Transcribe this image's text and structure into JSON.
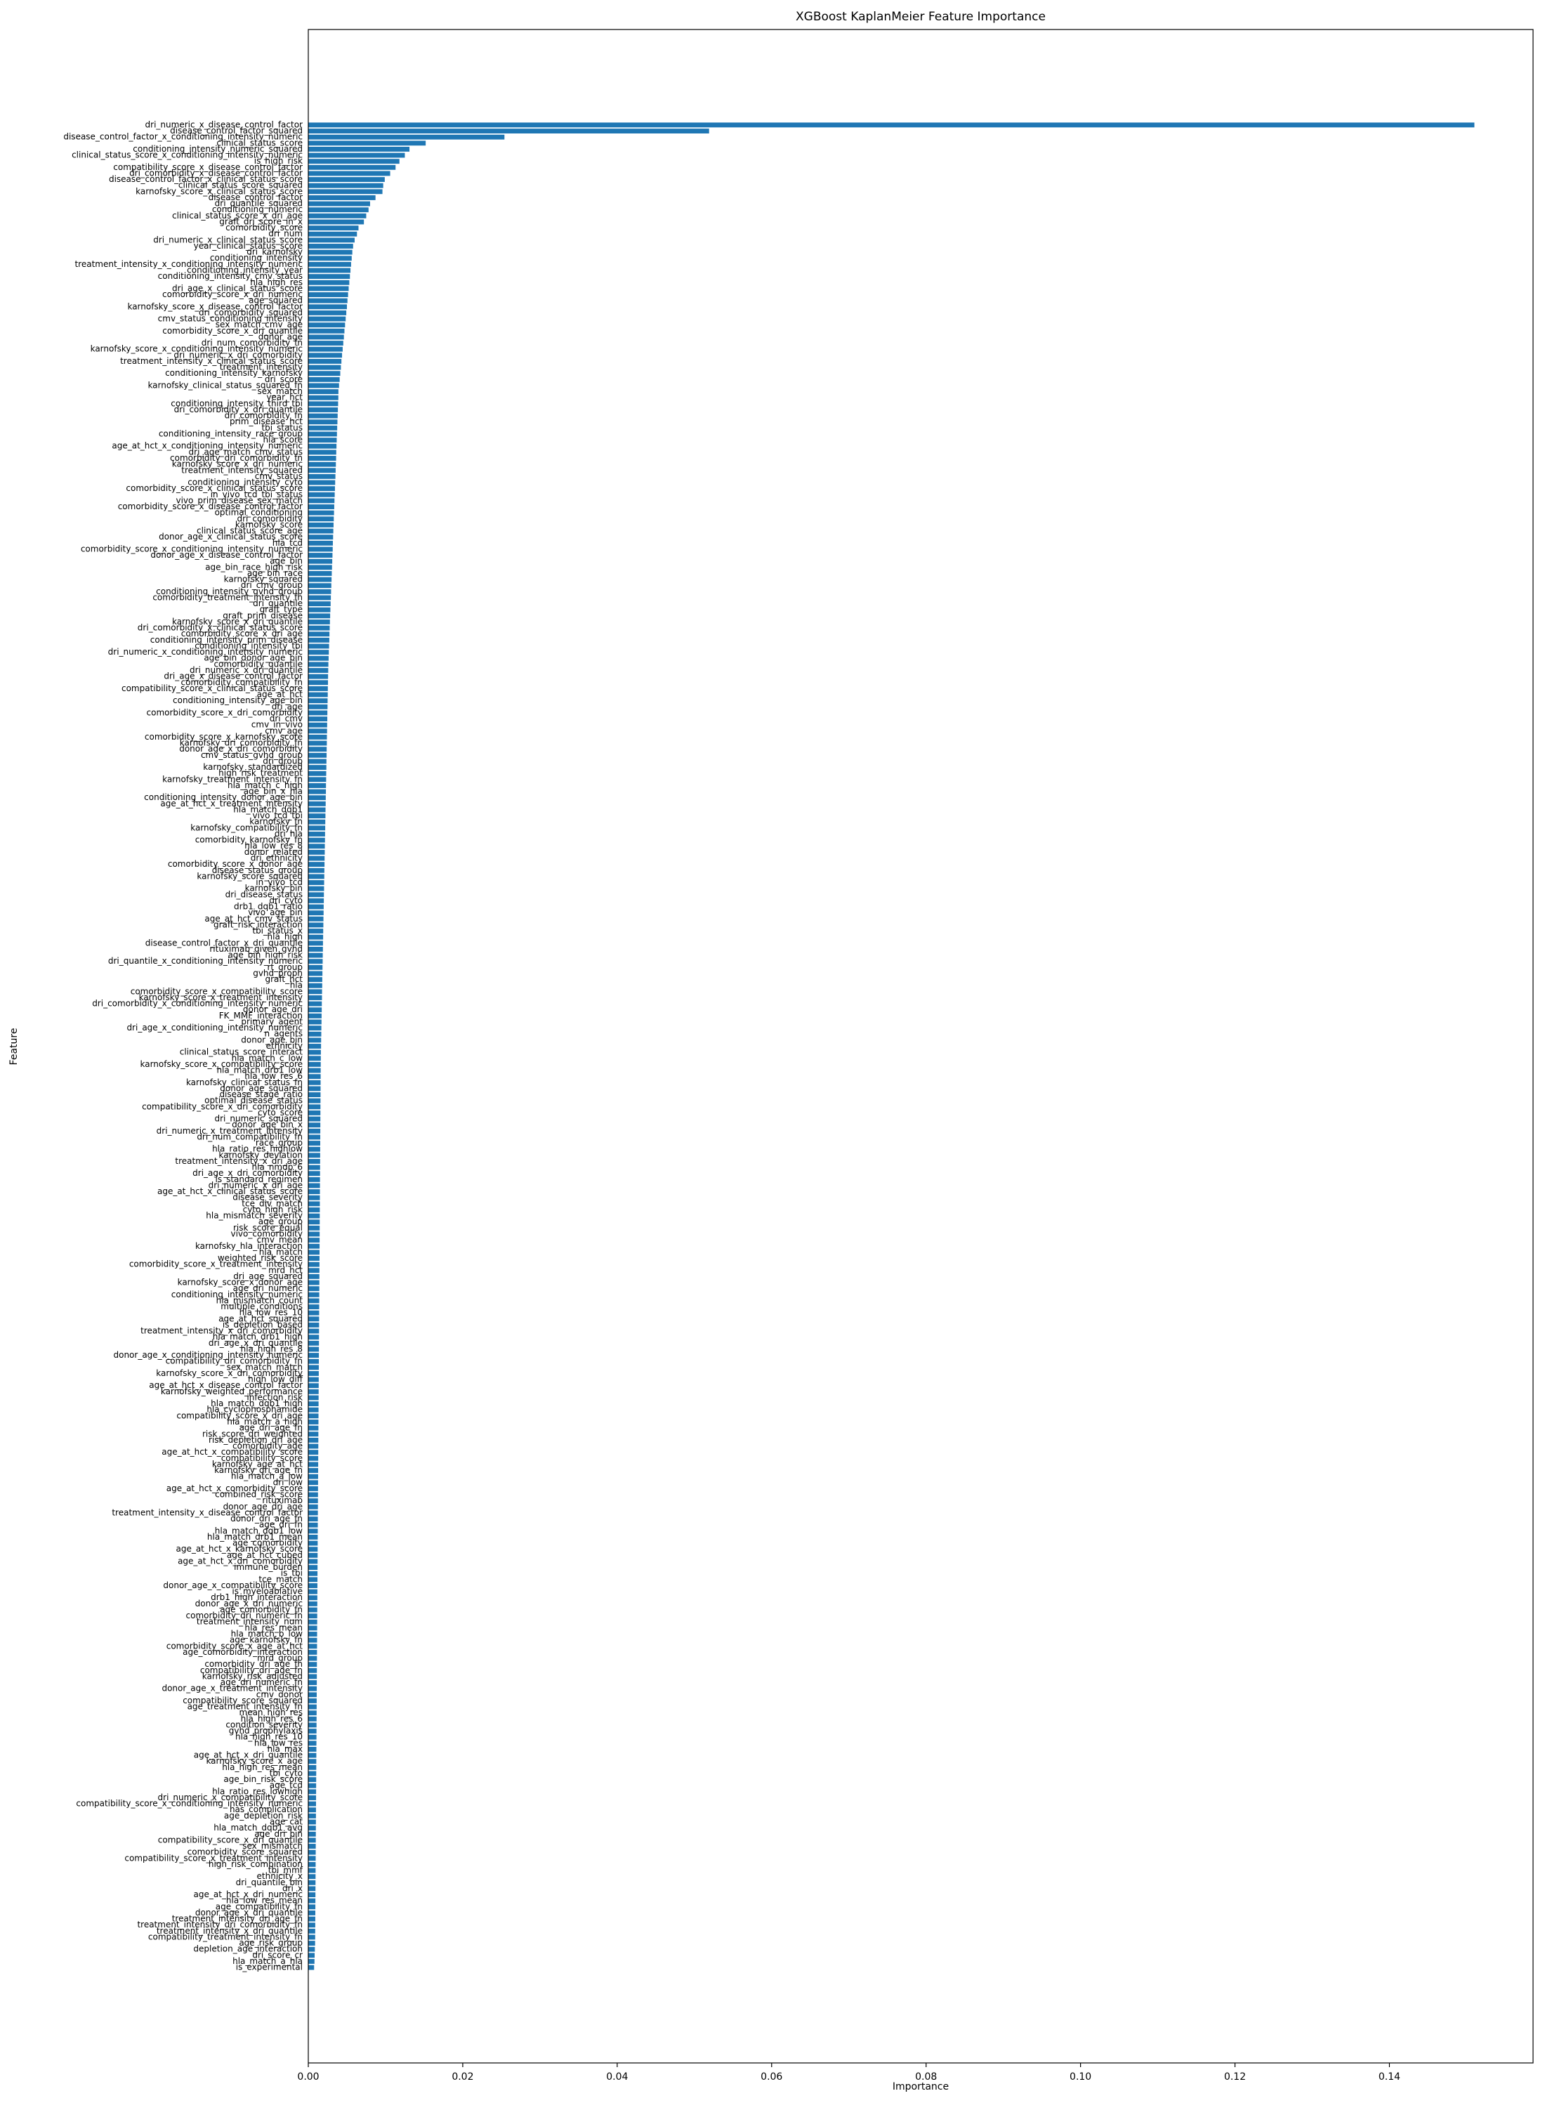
{
  "chart_data": {
    "type": "barh",
    "title": "XGBoost KaplanMeier Feature Importance",
    "x_label": "Importance",
    "y_label": "Feature",
    "color": "#1f77b4",
    "xlim": [
      0,
      0.1586
    ],
    "xticks": [
      {
        "value": 0,
        "label": "0.00"
      },
      {
        "value": 0.02,
        "label": "0.02"
      },
      {
        "value": 0.04,
        "label": "0.04"
      },
      {
        "value": 0.06,
        "label": "0.06"
      },
      {
        "value": 0.08,
        "label": "0.08"
      },
      {
        "value": 0.1,
        "label": "0.10"
      },
      {
        "value": 0.12,
        "label": "0.12"
      },
      {
        "value": 0.14,
        "label": "0.14"
      }
    ],
    "categories": [
      "dri_numeric_x_disease_control_factor",
      "disease_control_factor_squared",
      "disease_control_factor_x_conditioning_intensity_numeric",
      "clinical_status_score",
      "conditioning_intensity_numeric_squared",
      "clinical_status_score_x_conditioning_intensity_numeric",
      "is_high_risk",
      "compatibility_score_x_disease_control_factor",
      "dri_comorbidity_x_disease_control_factor",
      "disease_control_factor_x_clinical_status_score",
      "clinical_status_score_squared",
      "karnofsky_score_x_clinical_status_score",
      "disease_control_factor",
      "dri_quantile_squared",
      "conditioning_numeric",
      "clinical_status_score_x_dri_age",
      "graft_dri_score_in_x",
      "comorbidity_score",
      "dri_num",
      "dri_numeric_x_clinical_status_score",
      "year_clinical_status_score",
      "dri_karnofsky",
      "conditioning_intensity",
      "treatment_intensity_x_conditioning_intensity_numeric",
      "conditioning_intensity_year",
      "conditioning_intensity_cmv_status",
      "hla_high_res",
      "dri_age_x_clinical_status_score",
      "comorbidity_score_x_dri_numeric",
      "age_squared",
      "karnofsky_score_x_disease_control_factor",
      "dri_comorbidity_squared",
      "cmv_status_conditioning_intensity",
      "sex_match_cmv_age",
      "comorbidity_score_x_dri_quantile",
      "donor_age",
      "dri_num_comorbidity_fn",
      "karnofsky_score_x_conditioning_intensity_numeric",
      "dri_numeric_x_dri_comorbidity",
      "treatment_intensity_x_clinical_status_score",
      "treatment_intensity",
      "conditioning_intensity_karnofsky",
      "dri_score",
      "karnofsky_clinical_status_squared_fn",
      "sex_match",
      "year_hct",
      "conditioning_intensity_third_tbi",
      "dri_comorbidity_x_dri_quantile",
      "dri_comorbidity_fn",
      "prim_disease_hct",
      "tbi_status",
      "conditioning_intensity_race_group",
      "hla_score",
      "age_at_hct_x_conditioning_intensity_numeric",
      "dri_age_match_cmv_status",
      "comorbidity_dri_comorbidity_fn",
      "karnofsky_score_x_dri_numeric",
      "treatment_intensity_squared",
      "cmv_status",
      "conditioning_intensity_cyto",
      "comorbidity_score_x_clinical_status_score",
      "in_vivo_tcd_tbi_status",
      "vivo_prim_disease_sex_match",
      "comorbidity_score_x_disease_control_factor",
      "optimal_conditioning",
      "dri_comorbidity",
      "karnofsky_score",
      "clinical_status_score_age",
      "donor_age_x_clinical_status_score",
      "hla_tcd",
      "comorbidity_score_x_conditioning_intensity_numeric",
      "donor_age_x_disease_control_factor",
      "age_bin",
      "age_bin_race_high_risk",
      "age_bin_race",
      "karnofsky_squared",
      "dri_cmv_group",
      "conditioning_intensity_gvhd_group",
      "comorbidity_treatment_intensity_fn",
      "dri_quantile",
      "graft_type",
      "graft_prim_disease",
      "karnofsky_score_x_dri_quantile",
      "dri_comorbidity_x_clinical_status_score",
      "comorbidity_score_x_dri_age",
      "conditioning_intensity_prim_disease",
      "conditioning_intensity_tbi",
      "dri_numeric_x_conditioning_intensity_numeric",
      "age_bin_donor_age_bin",
      "comorbidity_quantile",
      "dri_numeric_x_dri_quantile",
      "dri_age_x_disease_control_factor",
      "comorbidity_compatibility_fn",
      "compatibility_score_x_clinical_status_score",
      "age_at_hct",
      "conditioning_intensity_age_bin",
      "dri_age",
      "comorbidity_score_x_dri_comorbidity",
      "dri_cmv",
      "cmv_in_vivo",
      "cmv_age",
      "comorbidity_score_x_karnofsky_score",
      "karnofsky_dri_comorbidity_fn",
      "donor_age_x_dri_comorbidity",
      "cmv_status_gvhd_group",
      "dri_group",
      "karnofsky_standardized",
      "high_risk_treatment",
      "karnofsky_treatment_intensity_fn",
      "hla_match_c_high",
      "age_bin_x_hla",
      "conditioning_intensity_donor_age_bin",
      "age_at_hct_x_treatment_intensity",
      "hla_match_dqb1",
      "vivo_tcd_tbi",
      "karnofsky_fn",
      "karnofsky_compatibility_fn",
      "dri_hla",
      "comorbidity_karnofsky_fn",
      "hla_low_res_8",
      "donor_related",
      "dri_ethnicity",
      "comorbidity_score_x_donor_age",
      "disease_status_group",
      "karnofsky_score_squared",
      "in_vivo_tcd",
      "karnofsky_bin",
      "dri_disease_status",
      "dri_cyto",
      "drb1_dqb1_ratio",
      "vivo_age_bin",
      "age_at_hct_cmv_status",
      "graft_risk_interaction",
      "tbi_status_x",
      "hla_high",
      "disease_control_factor_x_dri_quantile",
      "rituximab_given_gvhd",
      "age_bin_high_risk",
      "dri_quantile_x_conditioning_intensity_numeric",
      "rt_group",
      "gvhd_proph",
      "graft_hct",
      "hla",
      "comorbidity_score_x_compatibility_score",
      "karnofsky_score_x_treatment_intensity",
      "dri_comorbidity_x_conditioning_intensity_numeric",
      "donor_age_dri",
      "FK_MMF_interaction",
      "primary_agent",
      "dri_age_x_conditioning_intensity_numeric",
      "n_agents",
      "donor_age_bin",
      "ethnicity",
      "clinical_status_score_interact",
      "hla_match_c_low",
      "karnofsky_score_x_compatibility_score",
      "hla_match_drb1_low",
      "hla_low_res_6",
      "karnofsky_clinical_status_fn",
      "donor_age_squared",
      "disease_stage_ratio",
      "optimal_disease_status",
      "compatibility_score_x_dri_comorbidity",
      "cyto_score",
      "dri_numeric_squared",
      "donor_age_bin_x",
      "dri_numeric_x_treatment_intensity",
      "dri_num_compatibility_fn",
      "race_group",
      "hla_ratio_res_highlow",
      "karnofsky_deviation",
      "treatment_intensity_x_dri_age",
      "hla_nmdp_6",
      "dri_age_x_dri_comorbidity",
      "is_standard_regimen",
      "dri_numeric_x_dri_age",
      "age_at_hct_x_clinical_status_score",
      "disease_severity",
      "tce_div_match",
      "cyto_high_risk",
      "hla_mismatch_severity",
      "age_group",
      "risk_score_equal",
      "vivo_comorbidity",
      "cmv_mean",
      "karnofsky_hla_interaction",
      "hla_match",
      "weighted_risk_score",
      "comorbidity_score_x_treatment_intensity",
      "mrd_hct",
      "dri_age_squared",
      "karnofsky_score_x_donor_age",
      "age_dri_numeric",
      "conditioning_intensity_numeric",
      "hla_mismatch_count",
      "multiple_conditions",
      "hla_low_res_10",
      "age_at_hct_squared",
      "is_depletion_based",
      "treatment_intensity_x_dri_comorbidity",
      "hla_match_drb1_high",
      "dri_age_x_dri_quantile",
      "hla_high_res_8",
      "donor_age_x_conditioning_intensity_numeric",
      "compatibility_dri_comorbidity_fn",
      "sex_match_match",
      "karnofsky_score_x_dri_comorbidity",
      "high_low_diff",
      "age_at_hct_x_disease_control_factor",
      "karnofsky_weighted_performance",
      "infection_risk",
      "hla_match_dqb1_high",
      "hla_cyclophosphamide",
      "compatibility_score_x_dri_age",
      "hla_match_a_high",
      "age_dri_age_fn",
      "risk_score_dri_weighted",
      "risk_depletion_dri_age",
      "comorbidity_age",
      "age_at_hct_x_compatibility_score",
      "compatibility_score",
      "karnofsky_age_at_hct",
      "karnofsky_dri_age_fn",
      "hla_match_a_low",
      "dri_low",
      "age_at_hct_x_comorbidity_score",
      "combined_risk_score",
      "rituximab",
      "donor_age_dri_age",
      "treatment_intensity_x_disease_control_factor",
      "donor_dri_age_fn",
      "age_dri_fn",
      "hla_match_dqb1_low",
      "hla_match_drb1_mean",
      "age_comorbidity",
      "age_at_hct_x_karnofsky_score",
      "age_at_hct_cubed",
      "age_at_hct_x_dri_comorbidity",
      "immune_burden",
      "is_tbi",
      "tce_match",
      "donor_age_x_compatibility_score",
      "is_myeloablative",
      "drb1_high_interaction",
      "donor_age_x_dri_numeric",
      "age_comorbidity_fn",
      "comorbidity_dri_numeric_fn",
      "treatment_intensity_num",
      "hla_res_mean",
      "hla_match_b_low",
      "age_karnofsky_fn",
      "comorbidity_score_x_age_at_hct",
      "age_comorbidity_interaction",
      "mrd_group",
      "comorbidity_dri_age_fn",
      "compatibility_dri_age_fn",
      "karnofsky_risk_adjusted",
      "age_dri_numeric_fn",
      "donor_age_x_treatment_intensity",
      "cmv_donor",
      "compatibility_score_squared",
      "age_treatment_intensity_fn",
      "mean_high_res",
      "hla_high_res_6",
      "condition_severity",
      "gvhd_prophylaxis",
      "hla_high_res_10",
      "hla_low_res",
      "hla_max",
      "age_at_hct_x_dri_quantile",
      "karnofsky_score_x_age",
      "hla_high_res_mean",
      "tbi_cyto",
      "age_bin_risk_score",
      "age_tcd",
      "hla_ratio_res_lowhigh",
      "dri_numeric_x_compatibility_score",
      "compatibility_score_x_conditioning_intensity_numeric",
      "has_complication",
      "age_depletion_risk",
      "age_cat",
      "hla_match_dqb1_avg",
      "age_dri_bin",
      "compatibility_score_x_dri_quantile",
      "sex_mismatch",
      "comorbidity_score_squared",
      "compatibility_score_x_treatment_intensity",
      "high_risk_combination",
      "tbi_mmf",
      "ethnicity_x",
      "dri_quantile_bin",
      "dri_x",
      "age_at_hct_x_dri_numeric",
      "hla_low_res_mean",
      "age_compatibility_fn",
      "donor_age_x_dri_quantile",
      "treatment_intensity_dri_age_fn",
      "treatment_intensity_dri_comorbidity_fn",
      "treatment_intensity_x_dri_quantile",
      "compatibility_treatment_intensity_fn",
      "age_risk_group",
      "depletion_age_interaction",
      "dri_score_cr",
      "hla_match_a_hla",
      "is_experimental"
    ],
    "values": [
      0.151,
      0.0519,
      0.0254,
      0.0152,
      0.0131,
      0.0125,
      0.0118,
      0.0113,
      0.0106,
      0.0099,
      0.0097,
      0.0096,
      0.0087,
      0.008,
      0.0078,
      0.0075,
      0.0072,
      0.0065,
      0.0063,
      0.006,
      0.0058,
      0.0057,
      0.00562,
      0.00554,
      0.00546,
      0.00539,
      0.00531,
      0.00523,
      0.00515,
      0.00507,
      0.005,
      0.00492,
      0.00484,
      0.00476,
      0.00468,
      0.00461,
      0.00453,
      0.00445,
      0.00437,
      0.00429,
      0.00422,
      0.00414,
      0.00406,
      0.00398,
      0.0039,
      0.00389,
      0.00386,
      0.00383,
      0.0038,
      0.00377,
      0.00374,
      0.00371,
      0.00368,
      0.00365,
      0.00362,
      0.0036,
      0.00357,
      0.00354,
      0.00351,
      0.00348,
      0.00345,
      0.00342,
      0.00339,
      0.00336,
      0.00333,
      0.0033,
      0.00327,
      0.00324,
      0.00321,
      0.00318,
      0.00316,
      0.00313,
      0.0031,
      0.00307,
      0.00304,
      0.00301,
      0.00298,
      0.00295,
      0.00292,
      0.00289,
      0.00286,
      0.00283,
      0.0028,
      0.00277,
      0.00274,
      0.00272,
      0.00269,
      0.00266,
      0.00263,
      0.0026,
      0.00258,
      0.00256,
      0.00255,
      0.00253,
      0.00252,
      0.0025,
      0.00249,
      0.00247,
      0.00246,
      0.00244,
      0.00243,
      0.00241,
      0.0024,
      0.00238,
      0.00237,
      0.00235,
      0.00234,
      0.00232,
      0.00231,
      0.00229,
      0.00228,
      0.00226,
      0.00225,
      0.00223,
      0.00222,
      0.0022,
      0.00219,
      0.00217,
      0.00216,
      0.00214,
      0.00213,
      0.00211,
      0.0021,
      0.00208,
      0.00207,
      0.00205,
      0.00204,
      0.00202,
      0.00201,
      0.00199,
      0.00198,
      0.00196,
      0.00195,
      0.00193,
      0.00192,
      0.0019,
      0.00189,
      0.00187,
      0.00186,
      0.00184,
      0.00183,
      0.00181,
      0.0018,
      0.00178,
      0.00177,
      0.00175,
      0.00174,
      0.00172,
      0.00171,
      0.00169,
      0.00168,
      0.00166,
      0.00165,
      0.00163,
      0.00162,
      0.00161,
      0.001605,
      0.0016,
      0.001595,
      0.00159,
      0.001585,
      0.00158,
      0.001575,
      0.00157,
      0.001565,
      0.00156,
      0.001555,
      0.00155,
      0.001545,
      0.00154,
      0.001535,
      0.00153,
      0.001525,
      0.00152,
      0.001515,
      0.00151,
      0.001505,
      0.0015,
      0.001495,
      0.00149,
      0.001485,
      0.00148,
      0.001475,
      0.00147,
      0.001465,
      0.00146,
      0.001455,
      0.00145,
      0.001445,
      0.00144,
      0.001435,
      0.00143,
      0.001425,
      0.00142,
      0.001415,
      0.00141,
      0.001405,
      0.0014,
      0.001395,
      0.00139,
      0.001385,
      0.00138,
      0.001375,
      0.00137,
      0.001365,
      0.00136,
      0.001355,
      0.00135,
      0.001345,
      0.00134,
      0.001335,
      0.00133,
      0.001325,
      0.00132,
      0.001315,
      0.00131,
      0.001305,
      0.0013,
      0.001295,
      0.00129,
      0.001285,
      0.00128,
      0.001275,
      0.00127,
      0.001265,
      0.00126,
      0.001255,
      0.00125,
      0.001245,
      0.00124,
      0.001235,
      0.00123,
      0.001225,
      0.00122,
      0.001215,
      0.00121,
      0.001205,
      0.0012,
      0.001195,
      0.00119,
      0.001185,
      0.00118,
      0.001175,
      0.00117,
      0.001165,
      0.00116,
      0.001155,
      0.00115,
      0.001145,
      0.00114,
      0.001135,
      0.00113,
      0.001125,
      0.00112,
      0.001115,
      0.00111,
      0.001105,
      0.0011,
      0.001095,
      0.00109,
      0.001085,
      0.00108,
      0.001075,
      0.00107,
      0.001065,
      0.00106,
      0.001055,
      0.00105,
      0.001045,
      0.00104,
      0.001035,
      0.00103,
      0.001025,
      0.00102,
      0.001015,
      0.00101,
      0.001005,
      0.001,
      0.000995,
      0.00099,
      0.000985,
      0.00098,
      0.000975,
      0.00097,
      0.000965,
      0.00096,
      0.000955,
      0.00095,
      0.000945,
      0.00094,
      0.000935,
      0.00093,
      0.000925,
      0.00092,
      0.000915,
      0.00091,
      0.000905,
      0.0009,
      0.000895,
      0.00089,
      0.00088,
      0.00085,
      0.00082,
      0.0008,
      0.00075
    ]
  }
}
